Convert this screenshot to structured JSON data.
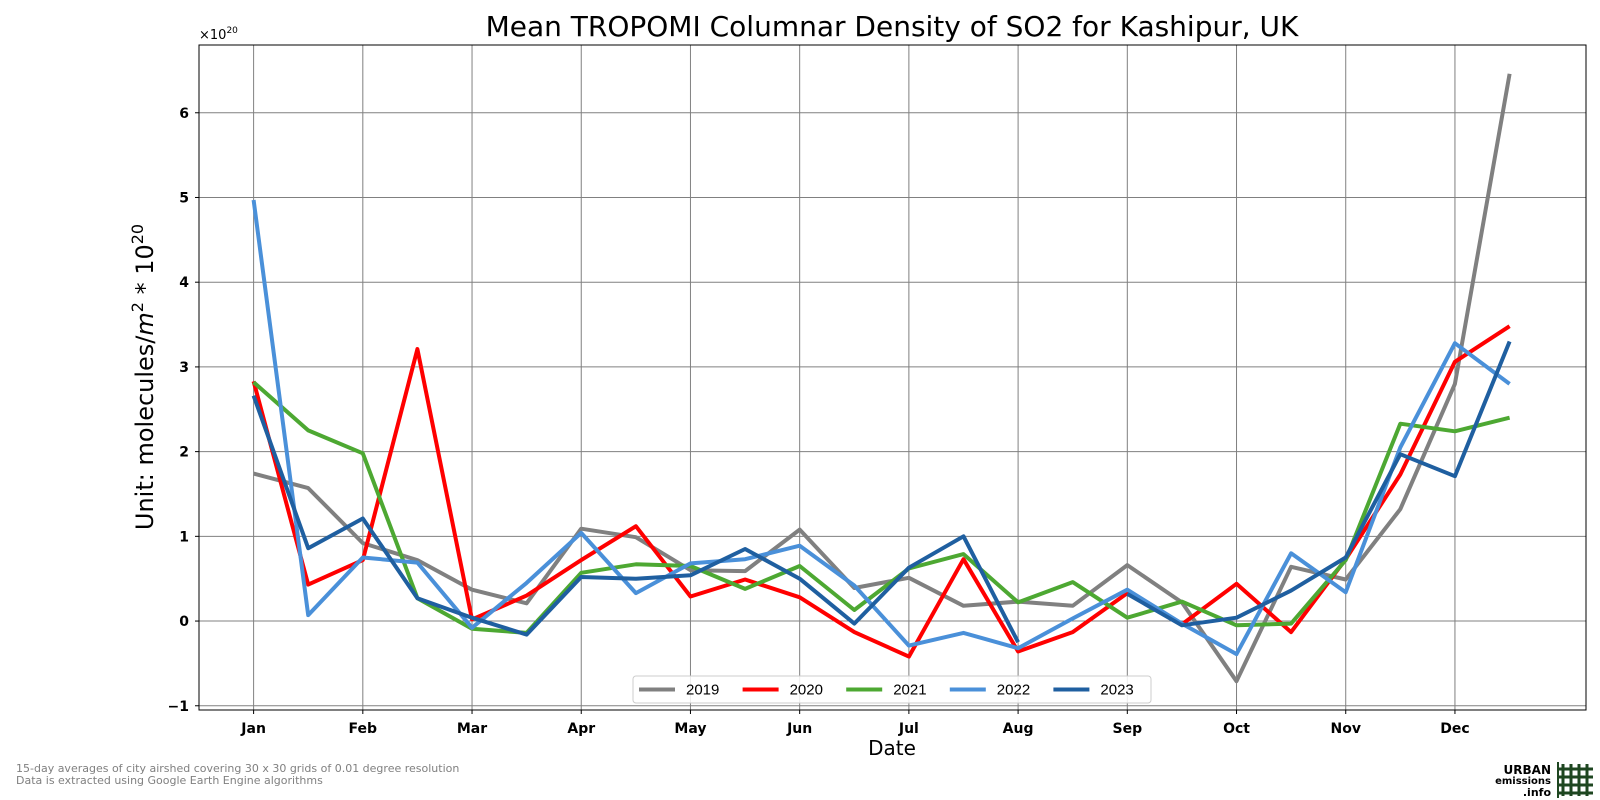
{
  "chart_data": {
    "type": "line",
    "title": "Mean TROPOMI Columnar Density of SO2 for Kashipur, UK",
    "xlabel": "Date",
    "ylabel_prefix": "Unit: molecules/",
    "ylabel_unit_base": "m",
    "ylabel_unit_exp": "2",
    "ylabel_mult": " * 10",
    "ylabel_mult_exp": "20",
    "offset_base": "×10",
    "offset_exp": "20",
    "ylim": [
      -1.05,
      6.8
    ],
    "yticks": [
      -1,
      0,
      1,
      2,
      3,
      4,
      5,
      6
    ],
    "ytick_labels": [
      "−1",
      "0",
      "1",
      "2",
      "3",
      "4",
      "5",
      "6"
    ],
    "xlim": [
      -0.5,
      12.2
    ],
    "month_ticks": [
      "Jan",
      "Feb",
      "Mar",
      "Apr",
      "May",
      "Jun",
      "Jul",
      "Aug",
      "Sep",
      "Oct",
      "Nov",
      "Dec"
    ],
    "x": [
      0,
      0.5,
      1,
      1.5,
      2,
      2.5,
      3,
      3.5,
      4,
      4.5,
      5,
      5.5,
      6,
      6.5,
      7,
      7.5,
      8,
      8.5,
      9,
      9.5,
      10,
      10.5,
      11,
      11.5
    ],
    "grid": true,
    "legend_position": "lower-center",
    "series": [
      {
        "name": "2019",
        "color": "#808080",
        "values": [
          1.74,
          1.57,
          0.92,
          0.72,
          0.37,
          0.21,
          1.09,
          0.99,
          0.6,
          0.59,
          1.08,
          0.39,
          0.51,
          0.18,
          0.23,
          0.18,
          0.66,
          0.22,
          -0.71,
          0.64,
          0.49,
          1.32,
          2.8,
          6.46
        ]
      },
      {
        "name": "2020",
        "color": "#ff0000",
        "values": [
          2.83,
          0.43,
          0.72,
          3.21,
          0.02,
          0.3,
          0.72,
          1.12,
          0.29,
          0.49,
          0.28,
          -0.13,
          -0.42,
          0.73,
          -0.36,
          -0.13,
          0.33,
          -0.04,
          0.44,
          -0.13,
          0.73,
          1.73,
          3.06,
          3.48
        ]
      },
      {
        "name": "2021",
        "color": "#4da832",
        "values": [
          2.82,
          2.25,
          1.98,
          0.27,
          -0.09,
          -0.14,
          0.57,
          0.67,
          0.65,
          0.38,
          0.65,
          0.13,
          0.62,
          0.79,
          0.22,
          0.46,
          0.04,
          0.23,
          -0.05,
          -0.03,
          0.72,
          2.33,
          2.24,
          2.4
        ]
      },
      {
        "name": "2022",
        "color": "#4a90d9",
        "values": [
          4.97,
          0.07,
          0.75,
          0.69,
          -0.08,
          0.45,
          1.04,
          0.33,
          0.68,
          0.73,
          0.89,
          0.42,
          -0.29,
          -0.14,
          -0.32,
          0.03,
          0.37,
          -0.03,
          -0.39,
          0.8,
          0.34,
          2.05,
          3.28,
          2.8
        ]
      },
      {
        "name": "2023",
        "color": "#1f5fa0",
        "values": [
          2.66,
          0.86,
          1.21,
          0.27,
          0.04,
          -0.16,
          0.52,
          0.5,
          0.54,
          0.85,
          0.5,
          -0.03,
          0.63,
          1.0,
          -0.25,
          null,
          0.32,
          -0.05,
          0.04,
          0.36,
          0.75,
          1.97,
          1.71,
          3.3
        ]
      }
    ]
  },
  "footnotes": {
    "line1": "15-day averages of city airshed covering 30 x 30 grids of 0.01 degree resolution",
    "line2": "Data is extracted using Google Earth Engine algorithms"
  },
  "logo": {
    "line1": "URBAN",
    "line2": "emissions",
    "line3": ".info",
    "color": "#1e4620"
  }
}
